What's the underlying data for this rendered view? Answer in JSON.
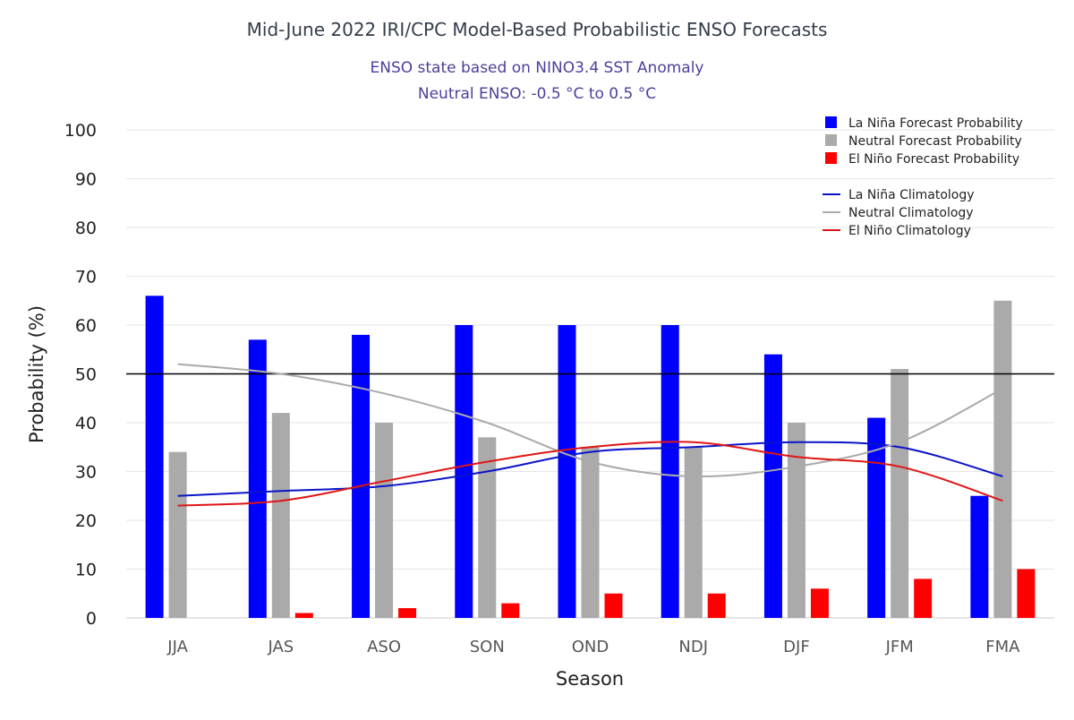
{
  "chart_data": {
    "type": "bar",
    "title": "Mid-June 2022 IRI/CPC Model-Based Probabilistic ENSO Forecasts",
    "subtitle_lines": [
      "ENSO state based on NINO3.4 SST Anomaly",
      "Neutral ENSO: -0.5 °C to 0.5 °C"
    ],
    "xlabel": "Season",
    "ylabel": "Probability (%)",
    "ylim": [
      0,
      100
    ],
    "yticks": [
      0,
      10,
      20,
      30,
      40,
      50,
      60,
      70,
      80,
      90,
      100
    ],
    "reference_line": 50,
    "grid": true,
    "legend_position": "top-right",
    "categories": [
      "JJA",
      "JAS",
      "ASO",
      "SON",
      "OND",
      "NDJ",
      "DJF",
      "JFM",
      "FMA"
    ],
    "series": [
      {
        "name": "La Niña Forecast Probability",
        "kind": "bar",
        "color": "#0000ff",
        "values": [
          66,
          57,
          58,
          60,
          60,
          60,
          54,
          41,
          25
        ]
      },
      {
        "name": "Neutral Forecast Probability",
        "kind": "bar",
        "color": "#aaaaaa",
        "values": [
          34,
          42,
          40,
          37,
          35,
          35,
          40,
          51,
          65
        ]
      },
      {
        "name": "El Niño Forecast Probability",
        "kind": "bar",
        "color": "#ff0000",
        "values": [
          0,
          1,
          2,
          3,
          5,
          5,
          6,
          8,
          10
        ]
      },
      {
        "name": "La Niña Climatology",
        "kind": "line",
        "color": "#0a14c8",
        "values": [
          25,
          26,
          27,
          30,
          34,
          35,
          36,
          35,
          29
        ]
      },
      {
        "name": "Neutral Climatology",
        "kind": "line",
        "color": "#aaaaaa",
        "values": [
          52,
          50,
          46,
          40,
          32,
          29,
          31,
          36,
          47
        ]
      },
      {
        "name": "El Niño Climatology",
        "kind": "line",
        "color": "#e01414",
        "values": [
          23,
          24,
          28,
          32,
          35,
          36,
          33,
          31,
          24
        ]
      }
    ]
  }
}
